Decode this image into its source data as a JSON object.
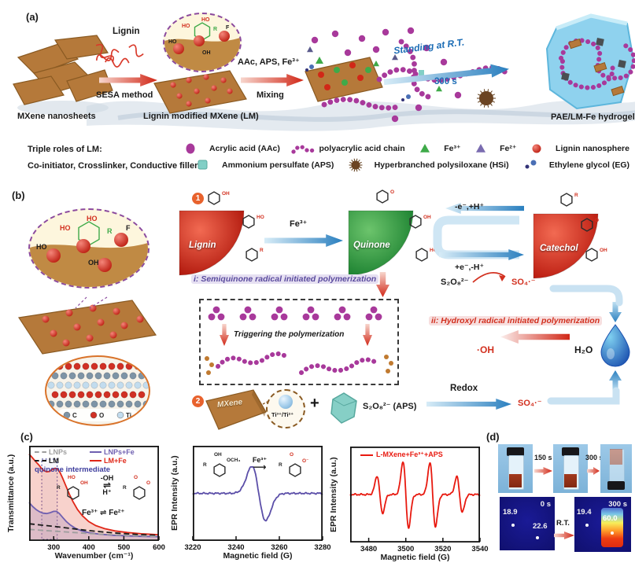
{
  "figure": {
    "panel_a_label": "(a)",
    "panel_b_label": "(b)",
    "panel_c_label": "(c)",
    "panel_d_label": "(d)"
  },
  "panel_a": {
    "mxene_nanosheets": "MXene nanosheets",
    "lignin": "Lignin",
    "sesa_method": "SESA method",
    "lm_caption": "Lignin modified MXene (LM)",
    "mix_reagents": "AAc, APS, Fe³⁺",
    "mixing": "Mixing",
    "standing": "Standing at R.T.",
    "standing_time": "300 s",
    "hydrogel_caption": "PAE/LM-Fe hydrogel",
    "inset": {
      "ho_left": "HO",
      "ho_top": "HO",
      "r": "R",
      "f": "F",
      "ho": "HO",
      "oh": "OH"
    }
  },
  "legend": {
    "row1_title": "Triple roles of LM:",
    "row2_title": "Co-initiator, Crosslinker, Conductive filler",
    "row1_items": [
      {
        "icon": "aac-monomer",
        "label": "Acrylic acid (AAc)"
      },
      {
        "icon": "paa-chain",
        "label": "polyacrylic acid chain"
      },
      {
        "icon": "fe3-triangle",
        "label": "Fe³⁺"
      },
      {
        "icon": "fe2-triangle",
        "label": "Fe²⁺"
      },
      {
        "icon": "lignin-nanosphere",
        "label": "Lignin nanosphere"
      }
    ],
    "row2_items": [
      {
        "icon": "aps-square",
        "label": "Ammonium persulfate (APS)"
      },
      {
        "icon": "hsi-ball",
        "label": "Hyperbranched polysiloxane (HSi)"
      },
      {
        "icon": "eg-dots",
        "label": "Ethylene glycol (EG)"
      }
    ]
  },
  "panel_b": {
    "step1": "1",
    "step2": "2",
    "lignin": "Lignin",
    "quinone": "Quinone",
    "catechol": "Catechol",
    "fe3": "Fe³⁺",
    "red_ox_top": "-e⁻,+H⁺",
    "red_ox_bottom": "+e⁻,-H⁺",
    "s2o8": "S₂O₈²⁻",
    "so4": "SO₄·⁻",
    "route_i": "i: Semiquinone radical  initiated polymerization",
    "route_ii": "ii: Hydroxyl radical initiated polymerization",
    "triggering": "Triggering the polymerization",
    "oh_radical": "·OH",
    "h2o": "H₂O",
    "mxene": "MXene",
    "ti_label": "Ti³⁺/Ti²⁺",
    "plus": "+",
    "aps_label": "S₂O₈²⁻ (APS)",
    "redox": "Redox",
    "so4_product": "SO₄·⁻",
    "atom_legend": [
      {
        "symbol": "C",
        "color": "#7e94a6"
      },
      {
        "symbol": "O",
        "color": "#d03024"
      },
      {
        "symbol": "Ti",
        "color": "#c2dcee"
      }
    ],
    "ring_labels": [
      "OH",
      "HO",
      "R",
      "O"
    ],
    "inset": {
      "ho_left": "HO",
      "ho_top": "HO",
      "r": "R",
      "f": "F",
      "ho": "HO",
      "oh": "OH"
    }
  },
  "chart_data": [
    {
      "type": "line",
      "xlabel": "Wavenumber (cm⁻¹)",
      "ylabel": "Transmittance (a.u.)",
      "xlim": [
        230,
        600
      ],
      "ylim": [
        0,
        1
      ],
      "xticks": [
        300,
        400,
        500,
        600
      ],
      "grid": false,
      "legend_position": "top-left",
      "annotation": "quinone intermediate",
      "annotation_box_x": [
        266,
        310
      ],
      "inset_text": {
        "top": "-OH",
        "bottom": "H⁺",
        "harpoons": "⇌",
        "fe_eq": "Fe³⁺ ⇌ Fe²⁺",
        "left_ring": [
          "HO",
          "OH",
          "R"
        ],
        "right_ring": [
          "O",
          "O",
          "R"
        ]
      },
      "legend": [
        {
          "name": "LNPs",
          "color": "#9e9e9e",
          "dash": true
        },
        {
          "name": "LNPs+Fe",
          "color": "#6f5fb0",
          "dash": false
        },
        {
          "name": "LM",
          "color": "#1a1a1a",
          "dash": true
        },
        {
          "name": "LM+Fe",
          "color": "#e02718",
          "dash": false
        }
      ],
      "series": [
        {
          "name": "LM+Fe",
          "color": "#e02718",
          "fill": "rgba(233,115,95,0.32)",
          "points": [
            [
              230,
              0.96
            ],
            [
              240,
              0.915
            ],
            [
              250,
              0.87
            ],
            [
              258,
              0.835
            ],
            [
              265,
              0.8
            ],
            [
              272,
              0.775
            ],
            [
              280,
              0.76
            ],
            [
              288,
              0.765
            ],
            [
              296,
              0.785
            ],
            [
              304,
              0.8
            ],
            [
              310,
              0.795
            ],
            [
              318,
              0.755
            ],
            [
              326,
              0.685
            ],
            [
              335,
              0.6
            ],
            [
              345,
              0.505
            ],
            [
              355,
              0.425
            ],
            [
              368,
              0.335
            ],
            [
              382,
              0.265
            ],
            [
              400,
              0.2
            ],
            [
              420,
              0.155
            ],
            [
              445,
              0.12
            ],
            [
              475,
              0.095
            ],
            [
              510,
              0.077
            ],
            [
              550,
              0.063
            ],
            [
              600,
              0.052
            ]
          ]
        },
        {
          "name": "LNPs+Fe",
          "color": "#6f5fb0",
          "fill": "rgba(160,140,190,0.30)",
          "points": [
            [
              230,
              0.415
            ],
            [
              240,
              0.37
            ],
            [
              250,
              0.335
            ],
            [
              260,
              0.31
            ],
            [
              270,
              0.295
            ],
            [
              280,
              0.29
            ],
            [
              290,
              0.3
            ],
            [
              300,
              0.315
            ],
            [
              308,
              0.315
            ],
            [
              316,
              0.29
            ],
            [
              326,
              0.245
            ],
            [
              336,
              0.2
            ],
            [
              348,
              0.16
            ],
            [
              362,
              0.125
            ],
            [
              380,
              0.095
            ],
            [
              400,
              0.075
            ],
            [
              430,
              0.058
            ],
            [
              470,
              0.046
            ],
            [
              520,
              0.038
            ],
            [
              560,
              0.033
            ],
            [
              600,
              0.03
            ]
          ]
        },
        {
          "name": "LM",
          "color": "#1a1a1a",
          "dash": "7 4",
          "points": [
            [
              230,
              0.175
            ],
            [
              270,
              0.158
            ],
            [
              310,
              0.142
            ],
            [
              350,
              0.122
            ],
            [
              390,
              0.103
            ],
            [
              430,
              0.087
            ],
            [
              470,
              0.073
            ],
            [
              510,
              0.062
            ],
            [
              550,
              0.053
            ],
            [
              600,
              0.044
            ]
          ]
        },
        {
          "name": "LNPs",
          "color": "#9e9e9e",
          "dash": "7 4",
          "points": [
            [
              230,
              0.112
            ],
            [
              270,
              0.1
            ],
            [
              310,
              0.09
            ],
            [
              350,
              0.079
            ],
            [
              390,
              0.068
            ],
            [
              430,
              0.059
            ],
            [
              470,
              0.051
            ],
            [
              510,
              0.044
            ],
            [
              550,
              0.039
            ],
            [
              600,
              0.033
            ]
          ]
        }
      ]
    },
    {
      "type": "line",
      "xlabel": "Magnetic field (G)",
      "ylabel": "EPR Intensity (a.u.)",
      "xlim": [
        3220,
        3280
      ],
      "ylim": [
        -1,
        1
      ],
      "xticks": [
        3220,
        3240,
        3260,
        3280
      ],
      "inset_text": {
        "arrow_label": "Fe³⁺",
        "left_ring": [
          "OH",
          "OCH₃",
          "R"
        ],
        "right_ring": [
          "O",
          "O⁻",
          "R"
        ]
      },
      "series": [
        {
          "name": "",
          "color": "#5b4ea8",
          "noise": 0.018,
          "epr_peaks": [
            {
              "center": 3250.5,
              "amp": 0.62,
              "sigma": 3.2
            }
          ]
        }
      ]
    },
    {
      "type": "line",
      "xlabel": "Magnetic field (G)",
      "ylabel": "EPR Intensity (a.u.)",
      "xlim": [
        3470,
        3540
      ],
      "ylim": [
        -1,
        1
      ],
      "xticks": [
        3480,
        3500,
        3520,
        3540
      ],
      "legend": [
        {
          "name": "L-MXene+Fe³⁺+APS",
          "color": "#e8190f",
          "dash": false
        }
      ],
      "series": [
        {
          "name": "L-MXene+Fe³⁺+APS",
          "color": "#e8190f",
          "noise": 0.02,
          "epr_peaks": [
            {
              "center": 3486,
              "amp": 0.42,
              "sigma": 1.5
            },
            {
              "center": 3500,
              "amp": 0.75,
              "sigma": 1.5
            },
            {
              "center": 3514.5,
              "amp": 0.72,
              "sigma": 1.5
            },
            {
              "center": 3529,
              "amp": 0.4,
              "sigma": 1.5
            }
          ]
        }
      ]
    }
  ],
  "panel_d": {
    "t150": "150 s",
    "t300": "300 s",
    "ir_left_time": "0 s",
    "ir_left_temp1": "18.9",
    "ir_left_temp2": "22.6",
    "ir_right_time": "300 s",
    "ir_right_temp1": "19.4",
    "ir_right_temp2": "60.0",
    "rt": "R.T."
  },
  "colors": {
    "magenta": "#a8399b",
    "red": "#d2301f",
    "green": "#3faa49",
    "violet": "#7a6cb0",
    "teal": "#82cfc6",
    "brown": "#b5793a",
    "blue_arrow": "#2a7fbf",
    "blue_text": "#1b6cb5",
    "hydrogel": "#8fd2ee",
    "thermal_bg": "#12127c"
  }
}
